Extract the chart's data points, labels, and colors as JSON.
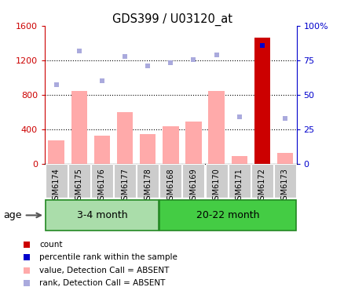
{
  "title": "GDS399 / U03120_at",
  "samples": [
    "GSM6174",
    "GSM6175",
    "GSM6176",
    "GSM6177",
    "GSM6178",
    "GSM6168",
    "GSM6169",
    "GSM6170",
    "GSM6171",
    "GSM6172",
    "GSM6173"
  ],
  "group1_label": "3-4 month",
  "group2_label": "20-22 month",
  "group1_count": 5,
  "group2_count": 6,
  "bar_values": [
    270,
    840,
    320,
    600,
    340,
    430,
    490,
    840,
    90,
    1460,
    120
  ],
  "bar_colors": [
    "#ffaaaa",
    "#ffaaaa",
    "#ffaaaa",
    "#ffaaaa",
    "#ffaaaa",
    "#ffaaaa",
    "#ffaaaa",
    "#ffaaaa",
    "#ffaaaa",
    "#cc0000",
    "#ffaaaa"
  ],
  "rank_values": [
    57.5,
    82.0,
    60.0,
    77.5,
    71.0,
    73.0,
    75.5,
    79.0,
    34.0,
    86.0,
    33.0
  ],
  "rank_colors": [
    "#aaaadd",
    "#aaaadd",
    "#aaaadd",
    "#aaaadd",
    "#aaaadd",
    "#aaaadd",
    "#aaaadd",
    "#aaaadd",
    "#aaaadd",
    "#0000cc",
    "#aaaadd"
  ],
  "ylim_left": [
    0,
    1600
  ],
  "ylim_right": [
    0,
    100
  ],
  "yticks_left": [
    0,
    400,
    800,
    1200,
    1600
  ],
  "yticks_right": [
    0,
    25,
    50,
    75,
    100
  ],
  "ytick_labels_left": [
    "0",
    "400",
    "800",
    "1200",
    "1600"
  ],
  "ytick_labels_right": [
    "0",
    "25",
    "50",
    "75",
    "100%"
  ],
  "hlines": [
    400,
    800,
    1200
  ],
  "left_color": "#cc0000",
  "right_color": "#0000cc",
  "cell_bg_color": "#cccccc",
  "group1_bg": "#aaddaa",
  "group2_bg": "#44cc44",
  "group_border": "#228822",
  "age_label": "age",
  "legend_items": [
    {
      "color": "#cc0000",
      "label": "count"
    },
    {
      "color": "#0000cc",
      "label": "percentile rank within the sample"
    },
    {
      "color": "#ffaaaa",
      "label": "value, Detection Call = ABSENT"
    },
    {
      "color": "#aaaadd",
      "label": "rank, Detection Call = ABSENT"
    }
  ]
}
